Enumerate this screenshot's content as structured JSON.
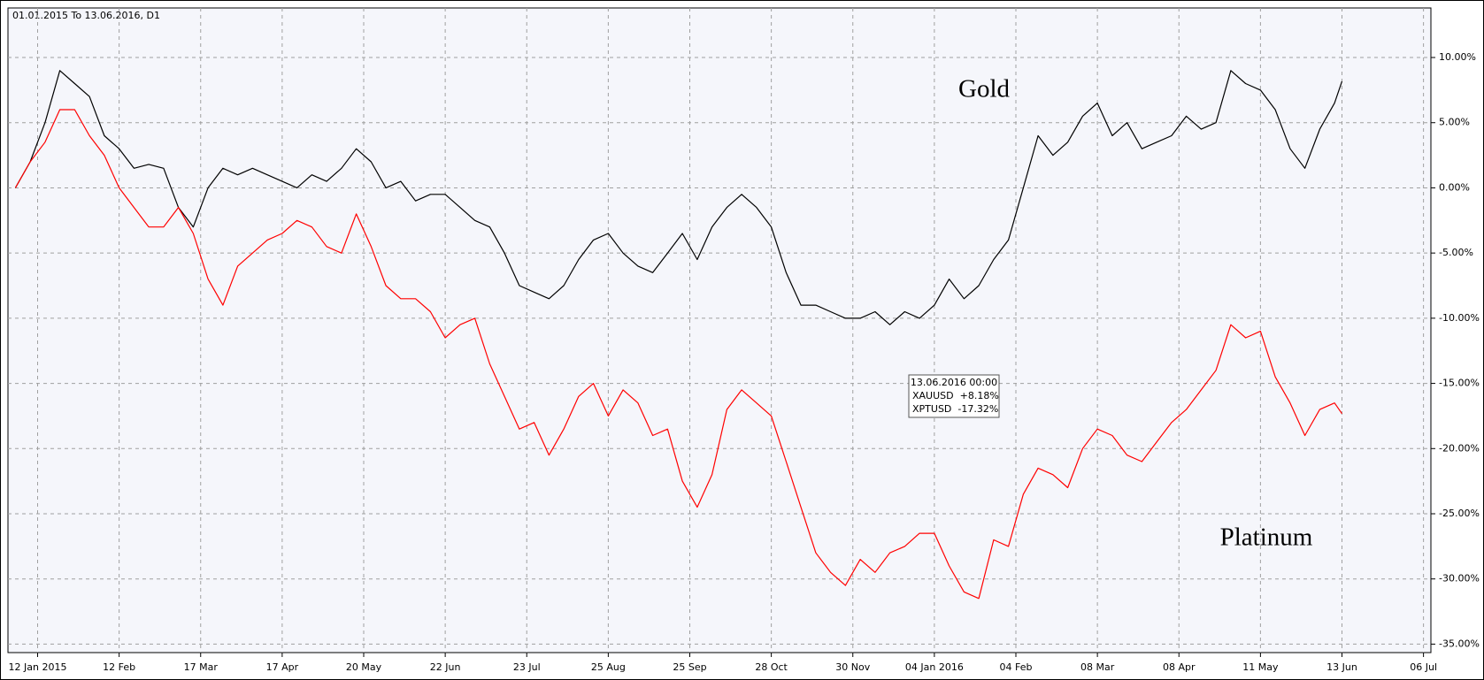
{
  "chart_data": {
    "type": "line",
    "title": "01.01.2015 To 13.06.2016, D1",
    "x": [
      0,
      4,
      8,
      12,
      16,
      20,
      24,
      28,
      32,
      36,
      40,
      44,
      48,
      52,
      56,
      60,
      64,
      68,
      72,
      76,
      80,
      84,
      88,
      92,
      96,
      100,
      104,
      108,
      112,
      116,
      120,
      124,
      128,
      132,
      136,
      140,
      144,
      148,
      152,
      156,
      160,
      164,
      168,
      172,
      176,
      180,
      184,
      188,
      192,
      196,
      200,
      204,
      208,
      212,
      216,
      220,
      224,
      228,
      232,
      236,
      240,
      244,
      248,
      252,
      256,
      260,
      264,
      268,
      272,
      276,
      280,
      284,
      288,
      292,
      296,
      300,
      304,
      308,
      312,
      316,
      320,
      324,
      328,
      332,
      336,
      340,
      344,
      348,
      352,
      356,
      358
    ],
    "series": [
      {
        "name": "Gold",
        "color": "#000000",
        "values": [
          0,
          2,
          5,
          9,
          8,
          7,
          4,
          3,
          1.5,
          1.8,
          1.5,
          -1.5,
          -3,
          0,
          1.5,
          1,
          1.5,
          1,
          0.5,
          0,
          1,
          0.5,
          1.5,
          3,
          2,
          0,
          0.5,
          -1,
          -0.5,
          -0.5,
          -1.5,
          -2.5,
          -3,
          -5,
          -7.5,
          -8,
          -8.5,
          -7.5,
          -5.5,
          -4,
          -3.5,
          -5,
          -6,
          -6.5,
          -5,
          -3.5,
          -5.5,
          -3,
          -1.5,
          -0.5,
          -1.5,
          -3,
          -6.5,
          -9,
          -9,
          -9.5,
          -10,
          -10,
          -9.5,
          -10.5,
          -9.5,
          -10,
          -9,
          -7,
          -8.5,
          -7.5,
          -5.5,
          -4,
          0,
          4,
          2.5,
          3.5,
          5.5,
          6.5,
          4,
          5,
          3,
          3.5,
          4,
          5.5,
          4.5,
          5,
          9,
          8,
          7.5,
          6,
          3,
          1.5,
          4.5,
          6.5,
          8.18
        ]
      },
      {
        "name": "Platinum",
        "color": "#ff0000",
        "values": [
          0,
          2,
          3.5,
          6,
          6,
          4,
          2.5,
          0,
          -1.5,
          -3,
          -3,
          -1.5,
          -3.5,
          -7,
          -9,
          -6,
          -5,
          -4,
          -3.5,
          -2.5,
          -3,
          -4.5,
          -5,
          -2,
          -4.5,
          -7.5,
          -8.5,
          -8.5,
          -9.5,
          -11.5,
          -10.5,
          -10,
          -13.5,
          -16,
          -18.5,
          -18,
          -20.5,
          -18.5,
          -16,
          -15,
          -17.5,
          -15.5,
          -16.5,
          -19,
          -18.5,
          -22.5,
          -24.5,
          -22,
          -17,
          -15.5,
          -16.5,
          -17.5,
          -21,
          -24.5,
          -28,
          -29.5,
          -30.5,
          -28.5,
          -29.5,
          -28,
          -27.5,
          -26.5,
          -26.5,
          -29,
          -31,
          -31.5,
          -27,
          -27.5,
          -23.5,
          -21.5,
          -22,
          -23,
          -20,
          -18.5,
          -19,
          -20.5,
          -21,
          -19.5,
          -18,
          -17,
          -15.5,
          -14,
          -10.5,
          -11.5,
          -11,
          -14.5,
          -16.5,
          -19,
          -17,
          -16.5,
          -17.32
        ]
      }
    ],
    "xlim": [
      -2,
      382
    ],
    "xticks": [
      {
        "value": 6,
        "label": "12 Jan 2015"
      },
      {
        "value": 28,
        "label": "12 Feb"
      },
      {
        "value": 50,
        "label": "17 Mar"
      },
      {
        "value": 72,
        "label": "17 Apr"
      },
      {
        "value": 94,
        "label": "20 May"
      },
      {
        "value": 116,
        "label": "22 Jun"
      },
      {
        "value": 138,
        "label": "23 Jul"
      },
      {
        "value": 160,
        "label": "25 Aug"
      },
      {
        "value": 182,
        "label": "25 Sep"
      },
      {
        "value": 204,
        "label": "28 Oct"
      },
      {
        "value": 226,
        "label": "30 Nov"
      },
      {
        "value": 248,
        "label": "04 Jan 2016"
      },
      {
        "value": 270,
        "label": "04 Feb"
      },
      {
        "value": 292,
        "label": "08 Mar"
      },
      {
        "value": 314,
        "label": "08 Apr"
      },
      {
        "value": 336,
        "label": "11 May"
      },
      {
        "value": 358,
        "label": "13 Jun"
      },
      {
        "value": 380,
        "label": "06 Jul"
      }
    ],
    "ylim": [
      -35.65,
      13.8
    ],
    "yticks": [
      {
        "value": 10,
        "label": "10.00%"
      },
      {
        "value": 5,
        "label": "5.00%"
      },
      {
        "value": 0,
        "label": "0.00%"
      },
      {
        "value": -5,
        "label": "-5.00%"
      },
      {
        "value": -10,
        "label": "-10.00%"
      },
      {
        "value": -15,
        "label": "-15.00%"
      },
      {
        "value": -20,
        "label": "-20.00%"
      },
      {
        "value": -25,
        "label": "-25.00%"
      },
      {
        "value": -30,
        "label": "-30.00%"
      },
      {
        "value": -35,
        "label": "-35.00%"
      }
    ],
    "grid": true,
    "tooltip": {
      "title": "13.06.2016 00:00",
      "rows": [
        {
          "text": "XAUUSD  +8.18%",
          "color": "#000000"
        },
        {
          "text": "XPTUSD  -17.32%",
          "color": "#ff0000"
        }
      ]
    }
  }
}
